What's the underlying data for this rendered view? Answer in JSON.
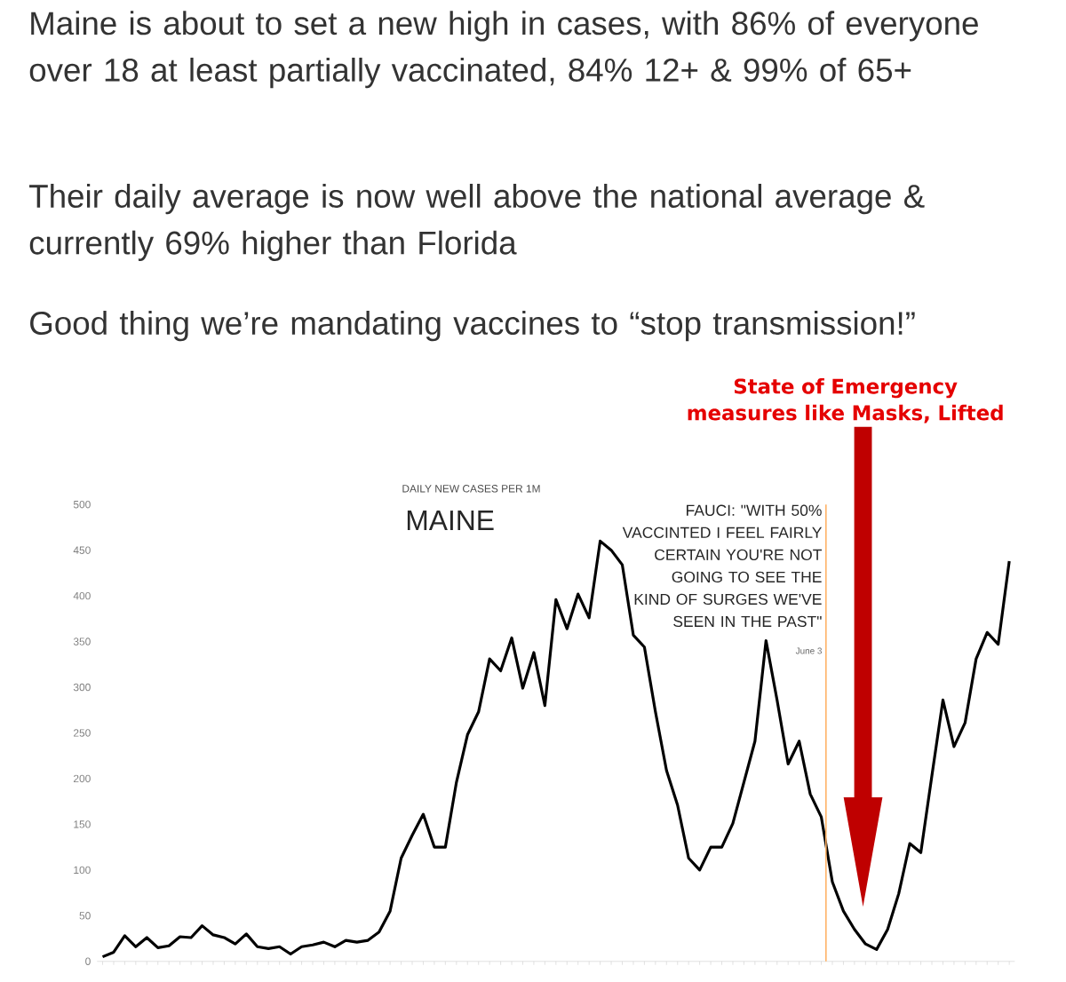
{
  "chart_data": {
    "type": "line",
    "title": "DAILY NEW CASES PER 1M",
    "subtitle": "MAINE",
    "categories": [
      null,
      null,
      null,
      null,
      null,
      null,
      null,
      null,
      null,
      null,
      null,
      null,
      null,
      null,
      null,
      null,
      null,
      null,
      null,
      null,
      null,
      null,
      null,
      null,
      null,
      null,
      null,
      null,
      null,
      null,
      null,
      null,
      null,
      null,
      null,
      null,
      null,
      null,
      null,
      null,
      null,
      null,
      null,
      null,
      null,
      null,
      null,
      null,
      null,
      null,
      null,
      null,
      null,
      null,
      null,
      null,
      null,
      null,
      null,
      null,
      null,
      null,
      null,
      null,
      null,
      null,
      null,
      null,
      null,
      null,
      null,
      null,
      null,
      null,
      null,
      null,
      null,
      null,
      null,
      null,
      null,
      null,
      null
    ],
    "series": [
      {
        "color": "#000000",
        "values": [
          5,
          10,
          28,
          16,
          26,
          15,
          17,
          27,
          26,
          39,
          29,
          26,
          19,
          30,
          16,
          14,
          16,
          8,
          16,
          18,
          21,
          16,
          23,
          21,
          23,
          32,
          55,
          113,
          138,
          161,
          125,
          125,
          196,
          248,
          273,
          331,
          318,
          354,
          299,
          338,
          280,
          396,
          364,
          402,
          376,
          460,
          450,
          434,
          357,
          344,
          273,
          209,
          171,
          113,
          100,
          125,
          125,
          151,
          196,
          241,
          351,
          286,
          216,
          241,
          183,
          158,
          87,
          55,
          35,
          19,
          13,
          35,
          74,
          129,
          119,
          203,
          286,
          235,
          261,
          331,
          360,
          347,
          438
        ]
      }
    ],
    "ylim": [
      0,
      500
    ],
    "yticks": [
      0,
      50,
      100,
      150,
      200,
      250,
      300,
      350,
      400,
      450,
      500
    ],
    "tick_labels": "y",
    "marker": "none",
    "line_style": "solid",
    "grid": false,
    "annotations": [
      "Maine is about to set a new high in cases, with 86% of everyone over 18 at least partially vaccinated, 84% 12+ & 99% of 65+",
      "Their daily average is now well above the national average & currently 69% higher than Florida",
      "Good thing we’re mandating vaccines to “stop transmission!”",
      "FAUCI: \"WITH 50% VACCINTED I FEEL FAIRLY CERTAIN YOU'RE NOT GOING TO SEE THE KIND OF SURGES WE'VE SEEN IN THE PAST\"",
      "State of Emergency measures like Masks, Lifted",
      "June 3"
    ]
  }
}
